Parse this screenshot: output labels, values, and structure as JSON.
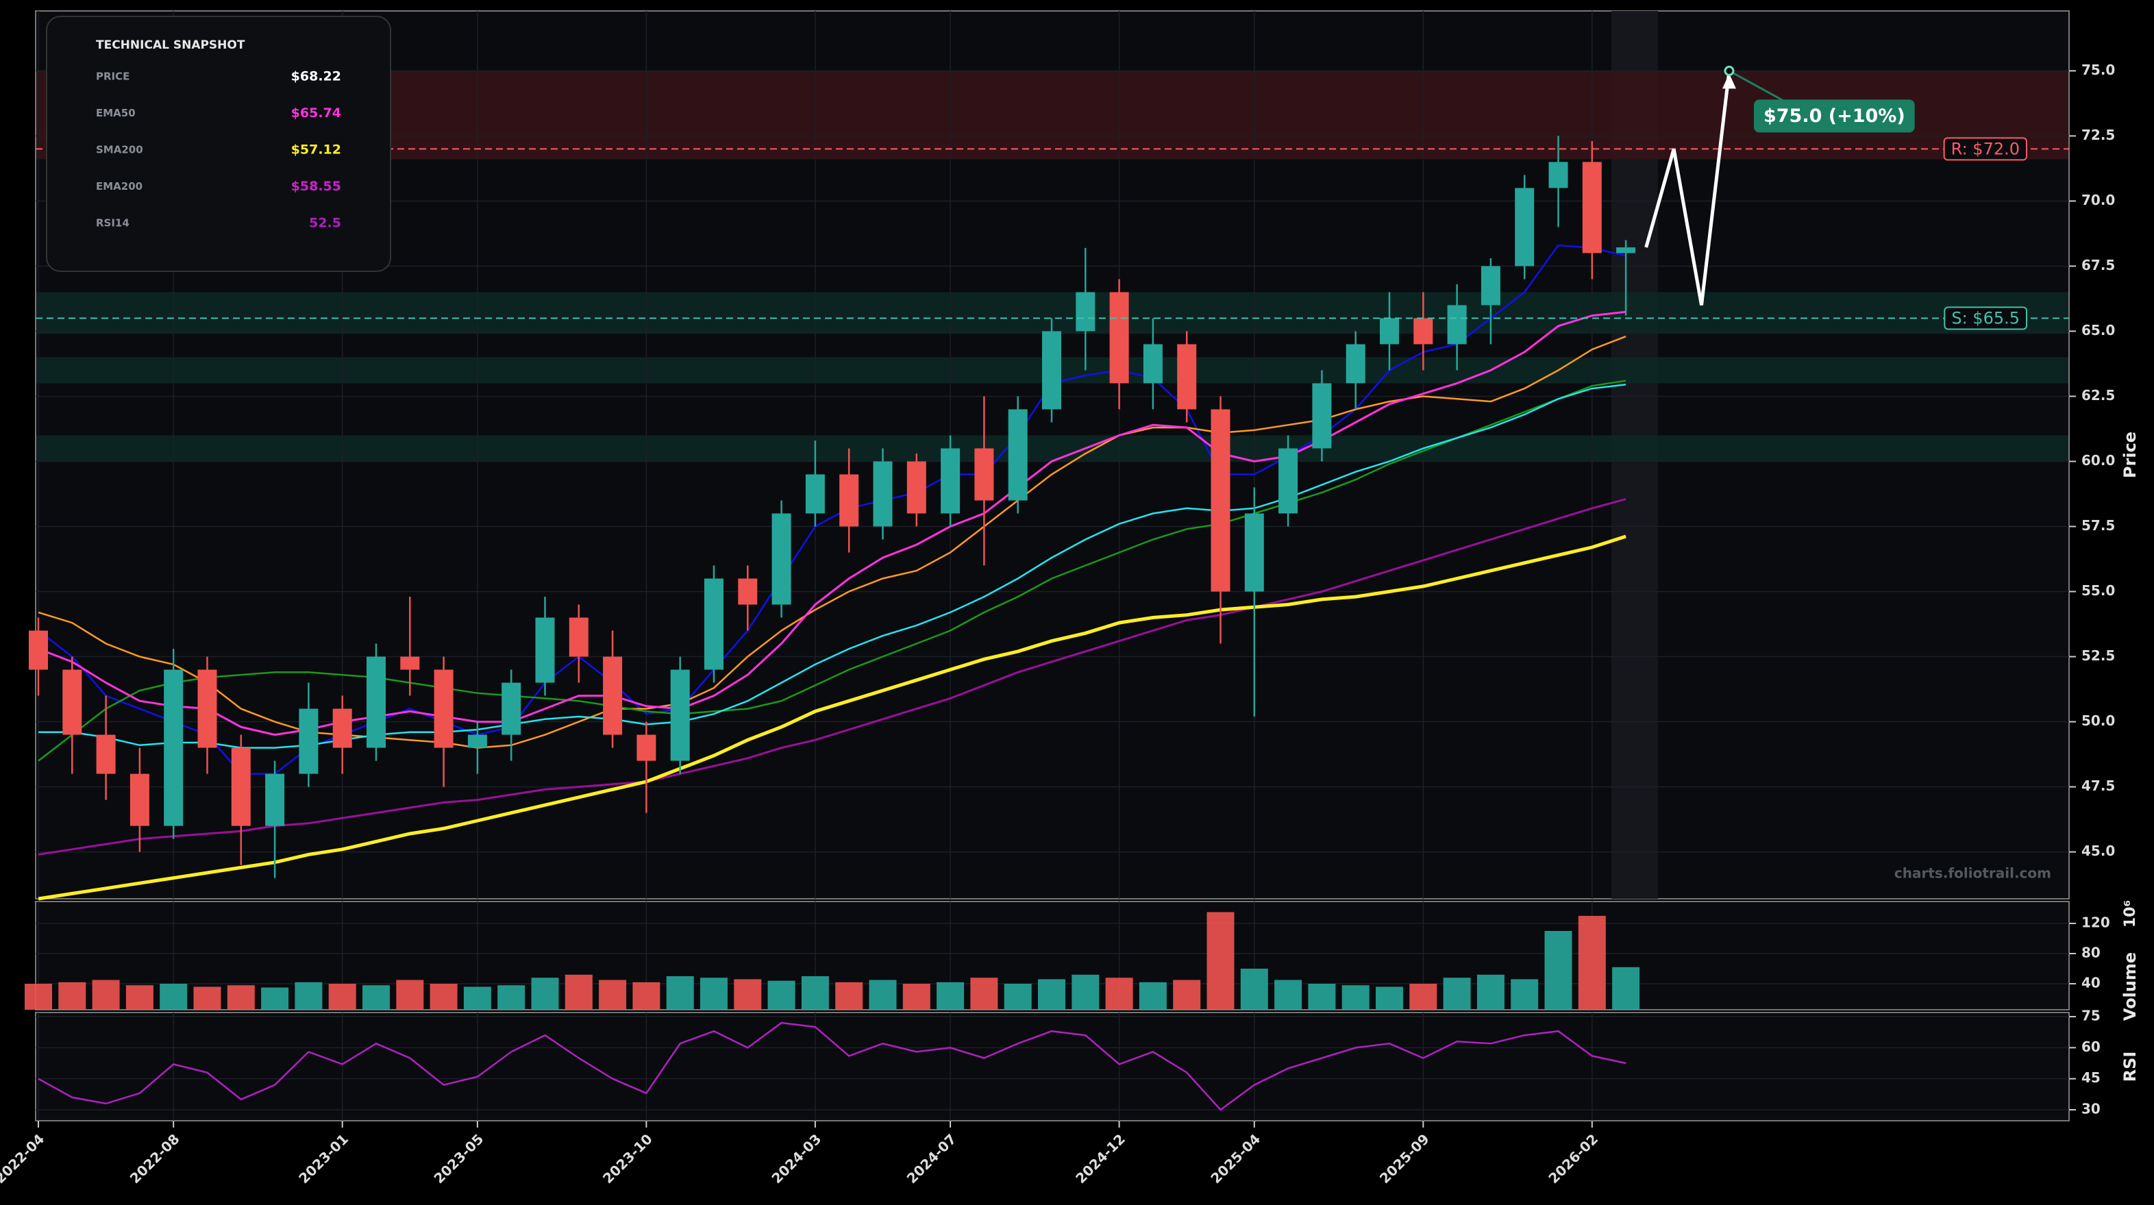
{
  "chart_data": {
    "type": "candlestick",
    "x": [
      "2022-04",
      "2022-05",
      "2022-06",
      "2022-07",
      "2022-08",
      "2022-09",
      "2022-10",
      "2022-11",
      "2022-12",
      "2023-01",
      "2023-02",
      "2023-03",
      "2023-04",
      "2023-05",
      "2023-06",
      "2023-07",
      "2023-08",
      "2023-09",
      "2023-10",
      "2023-11",
      "2023-12",
      "2024-01",
      "2024-02",
      "2024-03",
      "2024-04",
      "2024-05",
      "2024-06",
      "2024-07",
      "2024-08",
      "2024-09",
      "2024-10",
      "2024-11",
      "2024-12",
      "2025-01",
      "2025-02",
      "2025-03",
      "2025-04",
      "2025-05",
      "2025-06",
      "2025-07",
      "2025-08",
      "2025-09",
      "2025-10",
      "2025-11",
      "2025-12",
      "2026-01",
      "2026-02",
      "2026-03"
    ],
    "xticks": [
      "2022-04",
      "2022-08",
      "2023-01",
      "2023-05",
      "2023-10",
      "2024-03",
      "2024-07",
      "2024-12",
      "2025-04",
      "2025-09",
      "2026-02"
    ],
    "open": [
      53.5,
      52,
      49.5,
      48,
      46,
      52,
      49,
      46,
      48,
      50.5,
      49,
      52.5,
      52,
      49,
      49.5,
      51.5,
      54,
      52.5,
      49.5,
      48.5,
      52,
      55.5,
      54.5,
      58,
      59.5,
      57.5,
      60,
      58,
      60.5,
      58.5,
      62,
      65,
      66.5,
      63,
      64.5,
      62,
      55,
      58,
      60.5,
      63,
      64.5,
      65.5,
      64.5,
      66,
      67.5,
      70.5,
      71.5,
      68
    ],
    "high": [
      54,
      52.5,
      51,
      49,
      52.8,
      52.5,
      49.5,
      48.5,
      51.5,
      51,
      53,
      54.8,
      52.5,
      50,
      52,
      54.8,
      54.5,
      53.5,
      50,
      52.5,
      56,
      56,
      58.5,
      60.8,
      60.5,
      60.5,
      60.3,
      61,
      62.5,
      62.5,
      65.5,
      68.2,
      67,
      65.5,
      65,
      62.5,
      59,
      61,
      63.5,
      65,
      66.5,
      66.5,
      66.8,
      67.8,
      71,
      72.5,
      72.3,
      68.5
    ],
    "low": [
      51,
      48,
      47,
      45,
      45.5,
      48,
      44.5,
      44,
      47.5,
      48,
      48.5,
      51,
      47.5,
      48,
      48.5,
      51,
      51.5,
      49,
      46.5,
      48,
      51.5,
      53.5,
      54,
      57.5,
      56.5,
      57,
      57.5,
      57.5,
      56,
      58,
      61.5,
      63.5,
      62,
      62,
      61.5,
      53,
      50.2,
      57.5,
      60,
      62,
      63.5,
      63.5,
      63.5,
      64.5,
      67,
      69,
      67,
      65.6
    ],
    "close": [
      52,
      49.5,
      48,
      46,
      52,
      49,
      46,
      48,
      50.5,
      49,
      52.5,
      52,
      49,
      49.5,
      51.5,
      54,
      52.5,
      49.5,
      48.5,
      52,
      55.5,
      54.5,
      58,
      59.5,
      57.5,
      60,
      58,
      60.5,
      58.5,
      62,
      65,
      66.5,
      63,
      64.5,
      62,
      55,
      58,
      60.5,
      63,
      64.5,
      65.5,
      64.5,
      66,
      67.5,
      70.5,
      71.5,
      68,
      68.22
    ],
    "up_color": "#26a69a",
    "down_color": "#ef5350",
    "ylabel": "Price",
    "ylim": [
      43.2,
      77.3
    ],
    "yticks": [
      {
        "value": 45,
        "label": "45.0"
      },
      47.5,
      {
        "value": 50,
        "label": "50.0"
      },
      52.5,
      {
        "value": 55,
        "label": "55.0"
      },
      57.5,
      {
        "value": 60,
        "label": "60.0"
      },
      62.5,
      {
        "value": 65,
        "label": "65.0"
      },
      67.5,
      {
        "value": 70,
        "label": "70.0"
      },
      72.5,
      {
        "value": 75,
        "label": "75.0"
      }
    ],
    "grid": true,
    "lines": [
      {
        "color": "#1010ee",
        "width": 2.5,
        "values": [
          53.5,
          52.5,
          51,
          50.5,
          50,
          49.5,
          48,
          48,
          49,
          49.5,
          50,
          50.5,
          50,
          49.5,
          49.8,
          51.5,
          52.5,
          51.5,
          50.3,
          50.5,
          52,
          53.5,
          55.5,
          57.5,
          58.2,
          58.5,
          58.8,
          59.5,
          59.5,
          61,
          63,
          63.3,
          63.5,
          63.2,
          62,
          59.5,
          59.5,
          60.2,
          61,
          62,
          63.5,
          64.2,
          64.5,
          65.5,
          66.5,
          68.3,
          68.2,
          67.9
        ]
      },
      {
        "color": "#ff9a1f",
        "width": 2.5,
        "values": [
          54.2,
          53.8,
          53,
          52.5,
          52.2,
          51.5,
          50.5,
          50,
          49.6,
          49.5,
          49.4,
          49.3,
          49.2,
          49,
          49.1,
          49.5,
          50,
          50.5,
          50.5,
          50.7,
          51.3,
          52.5,
          53.5,
          54.3,
          55,
          55.5,
          55.8,
          56.5,
          57.5,
          58.5,
          59.5,
          60.3,
          61,
          61.3,
          61.3,
          61.1,
          61.2,
          61.4,
          61.6,
          62,
          62.3,
          62.5,
          62.4,
          62.3,
          62.8,
          63.5,
          64.3,
          64.8
        ]
      },
      {
        "color": "#1a9a1a",
        "width": 2.5,
        "values": [
          48.5,
          49.5,
          50.5,
          51.2,
          51.5,
          51.7,
          51.8,
          51.9,
          51.9,
          51.8,
          51.7,
          51.5,
          51.3,
          51.1,
          51,
          50.9,
          50.8,
          50.6,
          50.4,
          50.3,
          50.4,
          50.5,
          50.8,
          51.4,
          52,
          52.5,
          53,
          53.5,
          54.2,
          54.8,
          55.5,
          56,
          56.5,
          57,
          57.4,
          57.6,
          58,
          58.4,
          58.8,
          59.3,
          59.9,
          60.4,
          60.9,
          61.4,
          61.9,
          62.4,
          62.9,
          63.1
        ]
      },
      {
        "color": "#22e5f0",
        "width": 2.5,
        "values": [
          49.6,
          49.6,
          49.4,
          49.1,
          49.2,
          49.2,
          49,
          49,
          49.1,
          49.3,
          49.5,
          49.6,
          49.6,
          49.7,
          49.9,
          50.1,
          50.2,
          50.1,
          49.9,
          50,
          50.3,
          50.8,
          51.5,
          52.2,
          52.8,
          53.3,
          53.7,
          54.2,
          54.8,
          55.5,
          56.3,
          57,
          57.6,
          58,
          58.2,
          58.1,
          58.2,
          58.6,
          59.1,
          59.6,
          60,
          60.5,
          60.9,
          61.3,
          61.8,
          62.4,
          62.8,
          62.95
        ]
      },
      {
        "color": "#ff33dd",
        "width": 3,
        "values": [
          52.8,
          52.3,
          51.5,
          50.8,
          50.6,
          50.5,
          49.8,
          49.5,
          49.7,
          50,
          50.2,
          50.4,
          50.2,
          50,
          50,
          50.5,
          51,
          51,
          50.6,
          50.5,
          51,
          51.8,
          53,
          54.5,
          55.5,
          56.3,
          56.8,
          57.5,
          58,
          59,
          60,
          60.5,
          61,
          61.4,
          61.3,
          60.3,
          60,
          60.2,
          60.8,
          61.5,
          62.2,
          62.6,
          63,
          63.5,
          64.2,
          65.2,
          65.6,
          65.74
        ]
      },
      {
        "color": "#9a109a",
        "width": 3,
        "values": [
          44.9,
          45.1,
          45.3,
          45.5,
          45.6,
          45.7,
          45.8,
          46,
          46.1,
          46.3,
          46.5,
          46.7,
          46.9,
          47,
          47.2,
          47.4,
          47.5,
          47.6,
          47.7,
          48,
          48.3,
          48.6,
          49,
          49.3,
          49.7,
          50.1,
          50.5,
          50.9,
          51.4,
          51.9,
          52.3,
          52.7,
          53.1,
          53.5,
          53.9,
          54.1,
          54.4,
          54.7,
          55,
          55.4,
          55.8,
          56.2,
          56.6,
          57,
          57.4,
          57.8,
          58.2,
          58.55
        ]
      },
      {
        "color": "#ffee22",
        "width": 5,
        "values": [
          43.2,
          43.4,
          43.6,
          43.8,
          44,
          44.2,
          44.4,
          44.6,
          44.9,
          45.1,
          45.4,
          45.7,
          45.9,
          46.2,
          46.5,
          46.8,
          47.1,
          47.4,
          47.7,
          48.2,
          48.7,
          49.3,
          49.8,
          50.4,
          50.8,
          51.2,
          51.6,
          52,
          52.4,
          52.7,
          53.1,
          53.4,
          53.8,
          54,
          54.1,
          54.3,
          54.4,
          54.5,
          54.7,
          54.8,
          55,
          55.2,
          55.5,
          55.8,
          56.1,
          56.4,
          56.7,
          57.12
        ]
      }
    ],
    "zones": [
      {
        "from": 71.6,
        "to": 75,
        "color": "#3a1418"
      },
      {
        "from": 64.9,
        "to": 66.5,
        "color": "#0c2a26"
      },
      {
        "from": 63,
        "to": 64,
        "color": "#0c2a26"
      },
      {
        "from": 60,
        "to": 61,
        "color": "#0c2a26"
      }
    ],
    "resistance": {
      "value": 72,
      "label": "R: $72.0",
      "color": "#ff5a66"
    },
    "support": {
      "value": 65.5,
      "label": "S: $65.5",
      "color": "#3fc2ac"
    },
    "projection": {
      "values": [
        72,
        66,
        75
      ],
      "color": "#ffffff"
    },
    "target": {
      "value": 75,
      "label": "$75.0 (+10%)",
      "color": "#1b7f62"
    },
    "watermark": "charts.foliotrail.com",
    "volume": {
      "ylabel": "Volume",
      "unit": "10⁶",
      "ylim": [
        5.5,
        149
      ],
      "yticks": [
        40,
        80,
        120
      ],
      "values": [
        40,
        42,
        45,
        38,
        40,
        36,
        38,
        35,
        42,
        40,
        38,
        45,
        40,
        36,
        38,
        48,
        52,
        45,
        42,
        50,
        48,
        46,
        44,
        50,
        42,
        45,
        40,
        42,
        48,
        40,
        46,
        52,
        48,
        42,
        45,
        135,
        60,
        45,
        40,
        38,
        36,
        40,
        48,
        52,
        46,
        110,
        130,
        62
      ]
    },
    "rsi": {
      "ylabel": "RSI",
      "color": "#b020c0",
      "ylim": [
        24.7,
        77
      ],
      "yticks": [
        30,
        45,
        60,
        75
      ],
      "values": [
        45,
        36,
        33,
        38,
        52,
        48,
        35,
        42,
        58,
        52,
        62,
        55,
        42,
        46,
        58,
        66,
        55,
        45,
        38,
        62,
        68,
        60,
        72,
        70,
        56,
        62,
        58,
        60,
        55,
        62,
        68,
        66,
        52,
        58,
        48,
        30,
        42,
        50,
        55,
        60,
        62,
        55,
        63,
        62,
        66,
        68,
        56,
        52.5
      ]
    },
    "snapshot": {
      "title": "TECHNICAL SNAPSHOT",
      "rows": [
        {
          "label": "PRICE",
          "value": "$68.22",
          "color": "#ffffff"
        },
        {
          "label": "EMA50",
          "value": "$65.74",
          "color": "#ff33dd"
        },
        {
          "label": "SMA200",
          "value": "$57.12",
          "color": "#ffee22"
        },
        {
          "label": "EMA200",
          "value": "$58.55",
          "color": "#cc22cc"
        },
        {
          "label": "RSI14",
          "value": "52.5",
          "color": "#b020c0"
        }
      ]
    }
  }
}
